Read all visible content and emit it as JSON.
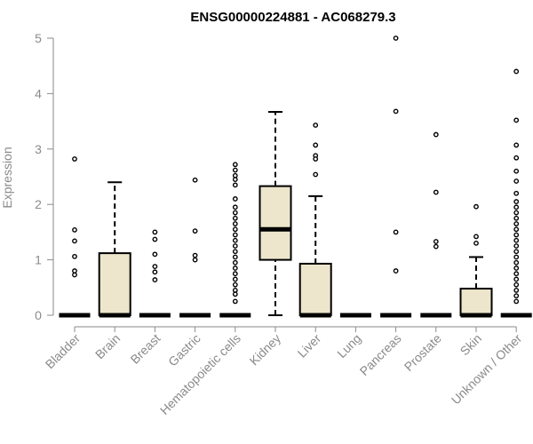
{
  "chart_data": {
    "type": "boxplot",
    "title": "ENSG00000224881 - AC068279.3",
    "xlabel": "",
    "ylabel": "Expression",
    "ylim": [
      0,
      5
    ],
    "yticks": [
      0,
      1,
      2,
      3,
      4,
      5
    ],
    "grid": false,
    "colors": {
      "box_fill": "#ede6cc",
      "stroke": "#000000",
      "axis": "#8a8a8a"
    },
    "categories": [
      "Bladder",
      "Brain",
      "Breast",
      "Gastric",
      "Hematopoietic cells",
      "Kidney",
      "Liver",
      "Lung",
      "Pancreas",
      "Prostate",
      "Skin",
      "Unknown / Other"
    ],
    "boxes": [
      {
        "category": "Bladder",
        "q1": 0,
        "median": 0,
        "q3": 0,
        "whisker_low": 0,
        "whisker_high": 0,
        "outliers": [
          2.82,
          1.54,
          1.34,
          1.06,
          0.8,
          0.73
        ]
      },
      {
        "category": "Brain",
        "q1": 0,
        "median": 0,
        "q3": 1.12,
        "whisker_low": 0,
        "whisker_high": 2.4,
        "outliers": []
      },
      {
        "category": "Breast",
        "q1": 0,
        "median": 0,
        "q3": 0,
        "whisker_low": 0,
        "whisker_high": 0,
        "outliers": [
          1.5,
          1.37,
          1.1,
          0.88,
          0.78,
          0.64
        ]
      },
      {
        "category": "Gastric",
        "q1": 0,
        "median": 0,
        "q3": 0,
        "whisker_low": 0,
        "whisker_high": 0,
        "outliers": [
          2.44,
          1.52,
          1.08,
          1.0
        ]
      },
      {
        "category": "Hematopoietic cells",
        "q1": 0,
        "median": 0,
        "q3": 0,
        "whisker_low": 0,
        "whisker_high": 0,
        "outliers": [
          2.72,
          2.62,
          2.52,
          2.45,
          2.35,
          2.1,
          1.95,
          1.85,
          1.75,
          1.65,
          1.55,
          1.45,
          1.35,
          1.25,
          1.15,
          1.05,
          0.95,
          0.85,
          0.75,
          0.65,
          0.55,
          0.45,
          0.38,
          0.25
        ]
      },
      {
        "category": "Kidney",
        "q1": 1.0,
        "median": 1.55,
        "q3": 2.33,
        "whisker_low": 0,
        "whisker_high": 3.67,
        "outliers": []
      },
      {
        "category": "Liver",
        "q1": 0,
        "median": 0,
        "q3": 0.93,
        "whisker_low": 0,
        "whisker_high": 2.15,
        "outliers": [
          3.43,
          3.07,
          2.88,
          2.82,
          2.54
        ]
      },
      {
        "category": "Lung",
        "q1": 0,
        "median": 0,
        "q3": 0,
        "whisker_low": 0,
        "whisker_high": 0,
        "outliers": []
      },
      {
        "category": "Pancreas",
        "q1": 0,
        "median": 0,
        "q3": 0,
        "whisker_low": 0,
        "whisker_high": 0,
        "outliers": [
          5.0,
          3.68,
          1.5,
          0.8
        ]
      },
      {
        "category": "Prostate",
        "q1": 0,
        "median": 0,
        "q3": 0,
        "whisker_low": 0,
        "whisker_high": 0,
        "outliers": [
          3.26,
          2.22,
          1.33,
          1.24
        ]
      },
      {
        "category": "Skin",
        "q1": 0,
        "median": 0,
        "q3": 0.48,
        "whisker_low": 0,
        "whisker_high": 1.05,
        "outliers": [
          1.96,
          1.42,
          1.3
        ]
      },
      {
        "category": "Unknown / Other",
        "q1": 0,
        "median": 0,
        "q3": 0,
        "whisker_low": 0,
        "whisker_high": 0,
        "outliers": [
          4.4,
          3.52,
          3.07,
          2.84,
          2.6,
          2.42,
          2.2,
          2.05,
          1.95,
          1.85,
          1.75,
          1.65,
          1.55,
          1.45,
          1.35,
          1.25,
          1.15,
          1.05,
          0.95,
          0.85,
          0.75,
          0.65,
          0.55,
          0.45,
          0.35,
          0.25
        ]
      }
    ]
  }
}
